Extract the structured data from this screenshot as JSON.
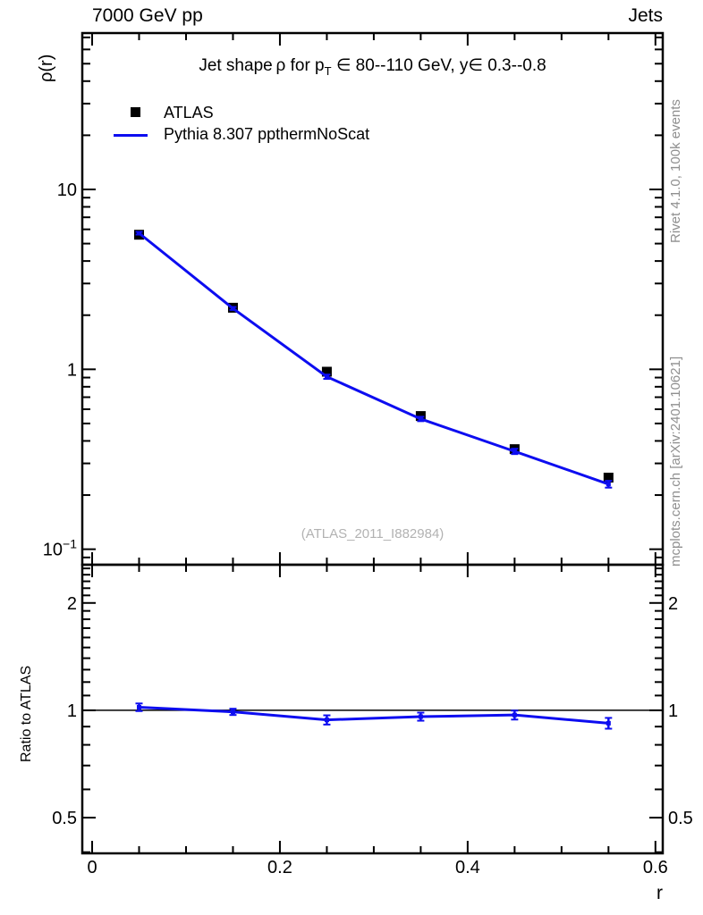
{
  "header": {
    "left": "7000 GeV pp",
    "right": "Jets"
  },
  "title": {
    "pre": "Jet shape ρ for p",
    "sub": "T",
    "post": " ∈ 80--110 GeV, y∈ 0.3--0.8"
  },
  "legend": [
    {
      "label": "ATLAS",
      "marker": "black-square-marker"
    },
    {
      "label": "Pythia 8.307 ppthermNoScat",
      "marker": "blue-line-marker"
    }
  ],
  "watermark": "(ATLAS_2011_I882984)",
  "side_text": {
    "top": "Rivet 4.1.0,  100k events",
    "bottom": "mcplots.cern.ch [arXiv:2401.10621]"
  },
  "axes": {
    "y_label_main": "ρ(r)",
    "y_label_ratio": "Ratio to ATLAS",
    "x_label": "r"
  },
  "colors": {
    "mc_blue": "#0d0df0",
    "data_black": "#000000",
    "gray_text": "#8f8f8f",
    "watermark_gray": "#b2b2b2"
  },
  "chart_data": {
    "type": "line",
    "title": "Jet shape ρ for pT ∈ 80--110 GeV, y ∈ 0.3--0.8",
    "xlabel": "r",
    "x": [
      0.05,
      0.15,
      0.25,
      0.35,
      0.45,
      0.55
    ],
    "xlim": [
      -0.0105,
      0.6078
    ],
    "xticks": [
      {
        "v": 0.0,
        "label": "0"
      },
      {
        "v": 0.2,
        "label": "0.2"
      },
      {
        "v": 0.4,
        "label": "0.4"
      },
      {
        "v": 0.6,
        "label": "0.6"
      }
    ],
    "x_minor_step": 0.05,
    "panels": [
      {
        "name": "main",
        "ylabel": "ρ(r)",
        "yscale": "log",
        "ylim": [
          0.082,
          74
        ],
        "yticks": [
          {
            "v": 10,
            "label": "10"
          },
          {
            "v": 1,
            "label": "1"
          },
          {
            "v": 0.1,
            "label": "10^−1"
          }
        ],
        "right_labels": false,
        "series": [
          {
            "name": "ATLAS",
            "type": "scatter",
            "marker": "square",
            "color": "#000000",
            "y": [
              5.6,
              2.2,
              0.97,
              0.55,
              0.36,
              0.25
            ]
          },
          {
            "name": "Pythia 8.307 ppthermNoScat",
            "type": "line",
            "color": "#0d0df0",
            "y": [
              5.71,
              2.18,
              0.91,
              0.53,
              0.35,
              0.23
            ],
            "yerr": [
              0.1,
              0.04,
              0.025,
              0.015,
              0.012,
              0.01
            ]
          }
        ]
      },
      {
        "name": "ratio",
        "ylabel": "Ratio to ATLAS",
        "yscale": "log",
        "ylim": [
          0.397,
          2.56
        ],
        "yticks": [
          {
            "v": 2,
            "label": "2"
          },
          {
            "v": 1,
            "label": "1"
          },
          {
            "v": 0.5,
            "label": "0.5"
          }
        ],
        "right_labels": true,
        "refline": 1,
        "series": [
          {
            "name": "Pythia/ATLAS",
            "type": "line",
            "color": "#0d0df0",
            "y": [
              1.02,
              0.99,
              0.94,
              0.96,
              0.97,
              0.92
            ],
            "yerr": [
              0.025,
              0.02,
              0.028,
              0.025,
              0.028,
              0.032
            ]
          }
        ]
      }
    ],
    "legend_entries": [
      "ATLAS",
      "Pythia 8.307 ppthermNoScat"
    ],
    "grid": false,
    "legend_position": "top-left-inside"
  }
}
